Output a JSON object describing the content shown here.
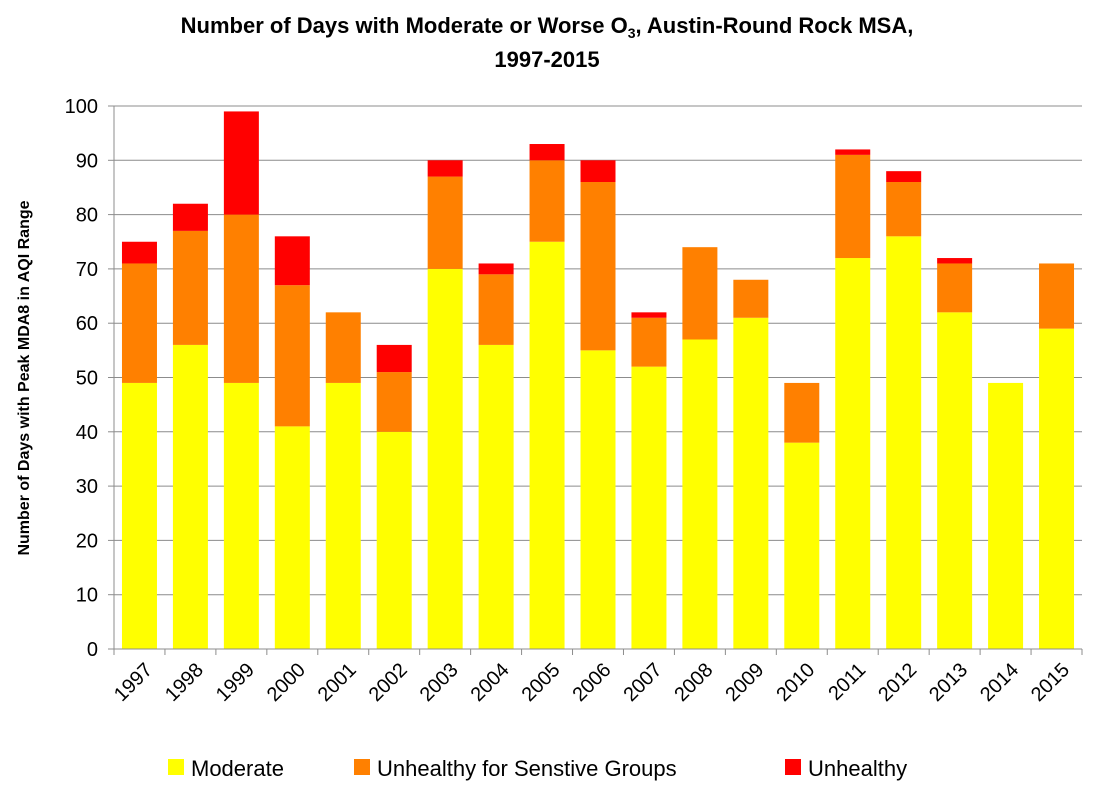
{
  "chart_data": {
    "type": "bar",
    "stacked": true,
    "title": {
      "line1_pre": "Number of Days with Moderate or Worse O",
      "line1_sub": "3",
      "line1_post": ", Austin-Round Rock MSA,",
      "line2": "1997-2015"
    },
    "ylabel": "Number of Days with Peak MDA8 in AQI Range",
    "xlabel": "",
    "ylim": [
      0,
      100
    ],
    "yticks": [
      0,
      10,
      20,
      30,
      40,
      50,
      60,
      70,
      80,
      90,
      100
    ],
    "grid": true,
    "legend_position": "bottom",
    "categories": [
      "1997",
      "1998",
      "1999",
      "2000",
      "2001",
      "2002",
      "2003",
      "2004",
      "2005",
      "2006",
      "2007",
      "2008",
      "2009",
      "2010",
      "2011",
      "2012",
      "2013",
      "2014",
      "2015"
    ],
    "series": [
      {
        "name": "Moderate",
        "color": "#ffff00",
        "values": [
          49,
          56,
          49,
          41,
          49,
          40,
          70,
          56,
          75,
          55,
          52,
          57,
          61,
          38,
          72,
          76,
          62,
          49,
          59
        ]
      },
      {
        "name": "Unhealthy for Senstive Groups",
        "color": "#ff8000",
        "values": [
          22,
          21,
          31,
          26,
          13,
          11,
          17,
          13,
          15,
          31,
          9,
          17,
          7,
          11,
          19,
          10,
          9,
          0,
          12
        ]
      },
      {
        "name": "Unhealthy",
        "color": "#ff0000",
        "values": [
          4,
          5,
          19,
          9,
          0,
          5,
          3,
          2,
          3,
          4,
          1,
          0,
          0,
          0,
          1,
          2,
          1,
          0,
          0
        ]
      }
    ]
  }
}
